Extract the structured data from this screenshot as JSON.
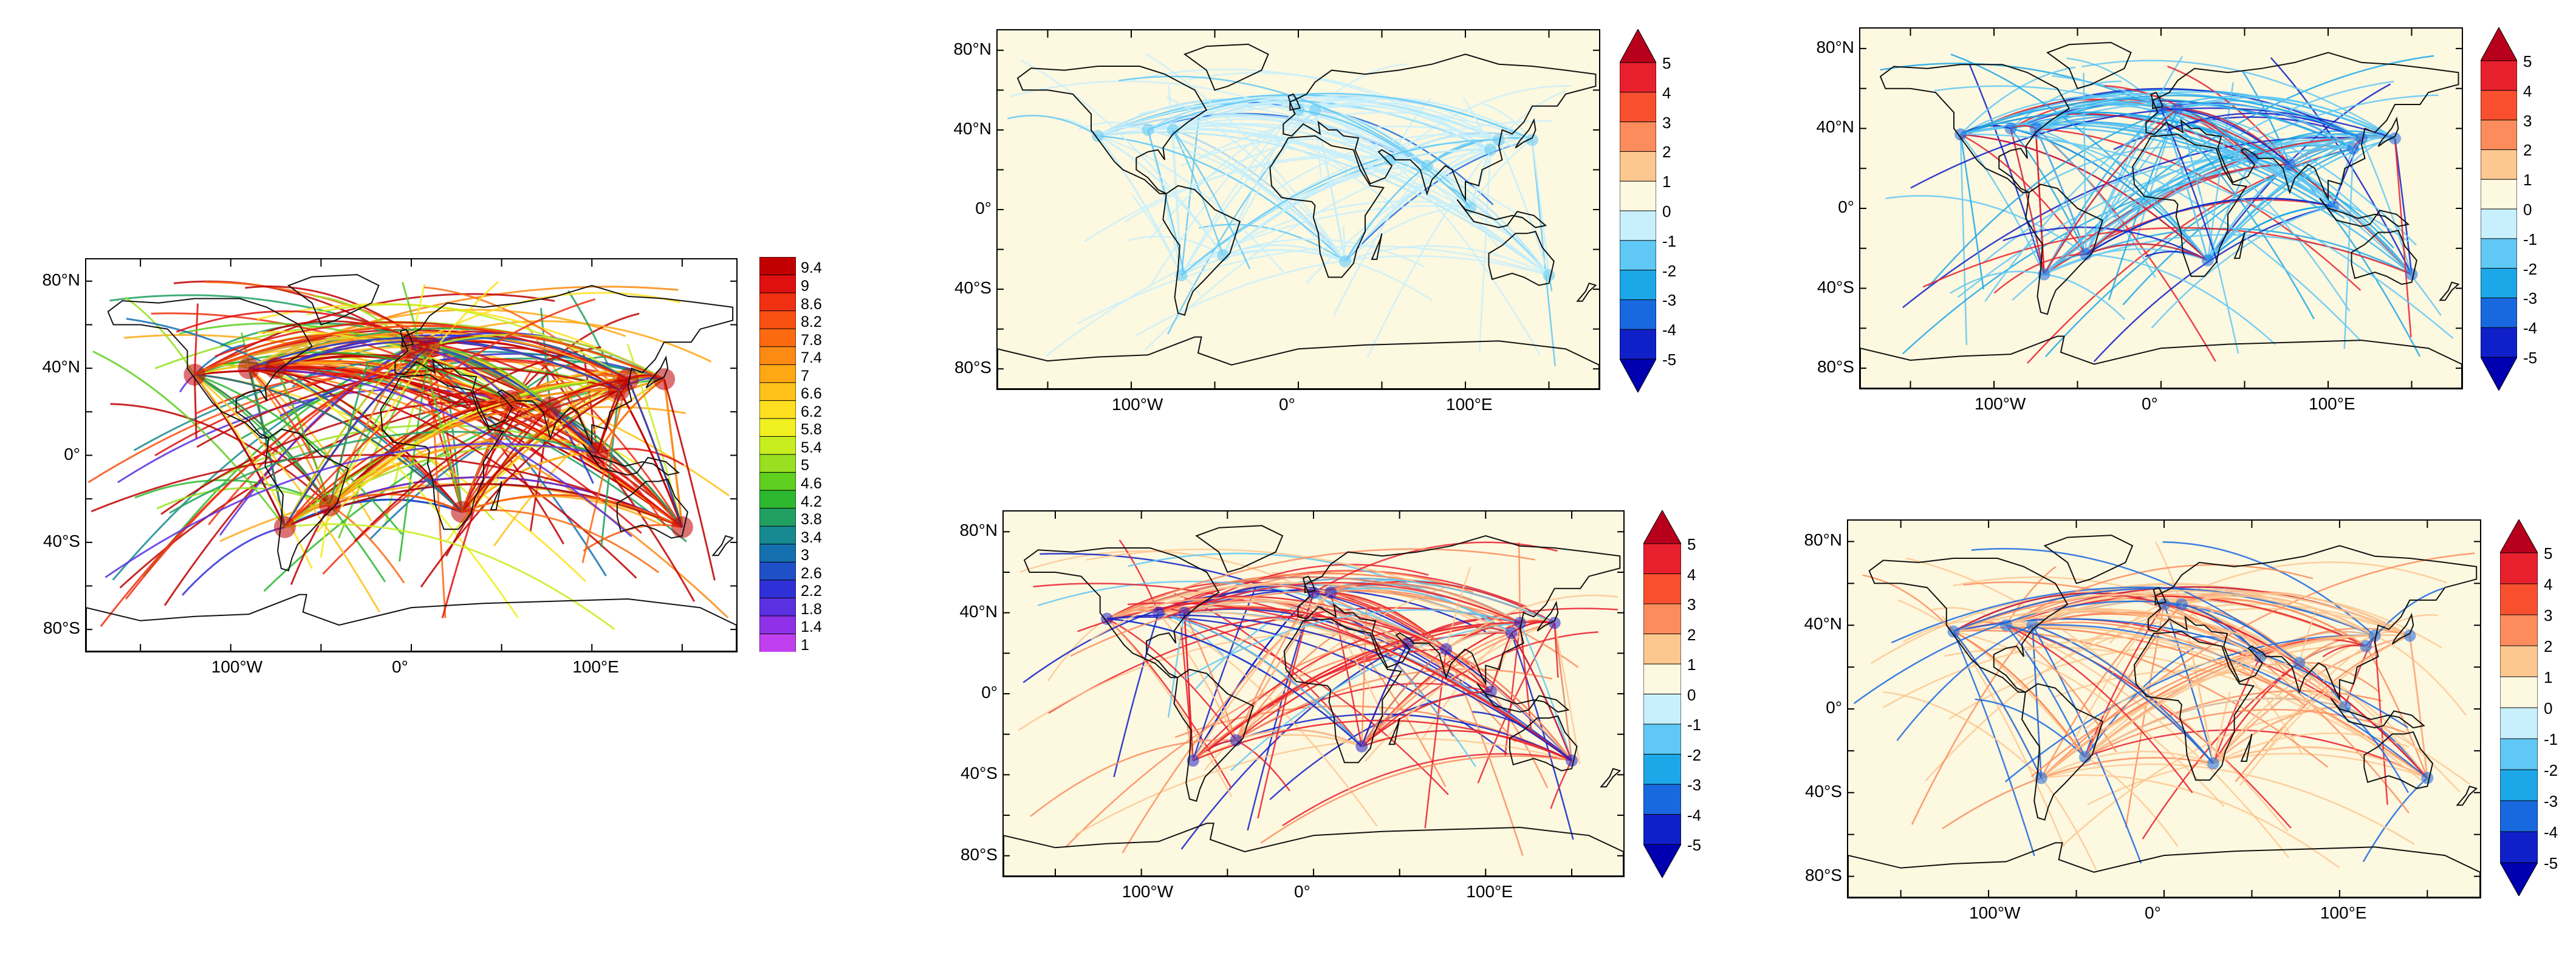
{
  "colors": {
    "ocean": "#fdf8e0",
    "land_outline": "#111111",
    "background": "#ffffff"
  },
  "panels": [
    {
      "id": "absolute-field",
      "lat_ticks": [
        "80°N",
        "40°N",
        "0°",
        "40°S",
        "80°S"
      ],
      "lon_ticks": [
        "100°W",
        "0°",
        "100°E"
      ],
      "colorbar": {
        "type": "sequential",
        "labels": [
          "9.4",
          "9",
          "8.6",
          "8.2",
          "7.8",
          "7.4",
          "7",
          "6.6",
          "6.2",
          "5.8",
          "5.4",
          "5",
          "4.6",
          "4.2",
          "3.8",
          "3.4",
          "3",
          "2.6",
          "2.2",
          "1.8",
          "1.4",
          "1"
        ],
        "colors": [
          "#c00000",
          "#e01010",
          "#f03010",
          "#f85010",
          "#fc6a10",
          "#fd8a12",
          "#ffa814",
          "#ffc21a",
          "#ffe020",
          "#f0f020",
          "#c8ee20",
          "#98e020",
          "#5fcf20",
          "#2db830",
          "#20a060",
          "#168a90",
          "#1570b0",
          "#2050c8",
          "#3030d8",
          "#5a30e0",
          "#9030e8",
          "#c040f0"
        ],
        "ocean_background": "#ffffff"
      }
    },
    {
      "id": "difference-top-middle",
      "lat_ticks": [
        "80°N",
        "40°N",
        "0°",
        "40°S",
        "80°S"
      ],
      "lon_ticks": [
        "100°W",
        "0°",
        "100°E"
      ],
      "colorbar": {
        "type": "diverging",
        "labels": [
          "5",
          "4",
          "3",
          "2",
          "1",
          "0",
          "-1",
          "-2",
          "-3",
          "-4",
          "-5"
        ],
        "colors": [
          "#b8001c",
          "#e8202e",
          "#f8502e",
          "#fc8c5c",
          "#fdc890",
          "#fdf8e0",
          "#c8f0fc",
          "#60c8f4",
          "#1ca8e8",
          "#1868e0",
          "#1020c8",
          "#0000b0"
        ]
      }
    },
    {
      "id": "difference-top-right",
      "lat_ticks": [
        "80°N",
        "40°N",
        "0°",
        "40°S",
        "80°S"
      ],
      "lon_ticks": [
        "100°W",
        "0°",
        "100°E"
      ],
      "colorbar": {
        "type": "diverging",
        "labels": [
          "5",
          "4",
          "3",
          "2",
          "1",
          "0",
          "-1",
          "-2",
          "-3",
          "-4",
          "-5"
        ],
        "colors": [
          "#b8001c",
          "#e8202e",
          "#f8502e",
          "#fc8c5c",
          "#fdc890",
          "#fdf8e0",
          "#c8f0fc",
          "#60c8f4",
          "#1ca8e8",
          "#1868e0",
          "#1020c8",
          "#0000b0"
        ]
      }
    },
    {
      "id": "difference-bottom-middle",
      "lat_ticks": [
        "80°N",
        "40°N",
        "0°",
        "40°S",
        "80°S"
      ],
      "lon_ticks": [
        "100°W",
        "0°",
        "100°E"
      ],
      "colorbar": {
        "type": "diverging",
        "labels": [
          "5",
          "4",
          "3",
          "2",
          "1",
          "0",
          "-1",
          "-2",
          "-3",
          "-4",
          "-5"
        ],
        "colors": [
          "#b8001c",
          "#e8202e",
          "#f8502e",
          "#fc8c5c",
          "#fdc890",
          "#fdf8e0",
          "#c8f0fc",
          "#60c8f4",
          "#1ca8e8",
          "#1868e0",
          "#1020c8",
          "#0000b0"
        ]
      }
    },
    {
      "id": "difference-bottom-right",
      "lat_ticks": [
        "80°N",
        "40°N",
        "0°",
        "40°S",
        "80°S"
      ],
      "lon_ticks": [
        "100°W",
        "0°",
        "100°E"
      ],
      "colorbar": {
        "type": "diverging",
        "labels": [
          "5",
          "4",
          "3",
          "2",
          "1",
          "0",
          "-1",
          "-2",
          "-3",
          "-4",
          "-5"
        ],
        "colors": [
          "#b8001c",
          "#e8202e",
          "#f8502e",
          "#fc8c5c",
          "#fdc890",
          "#fdf8e0",
          "#c8f0fc",
          "#60c8f4",
          "#1ca8e8",
          "#1868e0",
          "#1020c8",
          "#0000b0"
        ]
      }
    }
  ]
}
